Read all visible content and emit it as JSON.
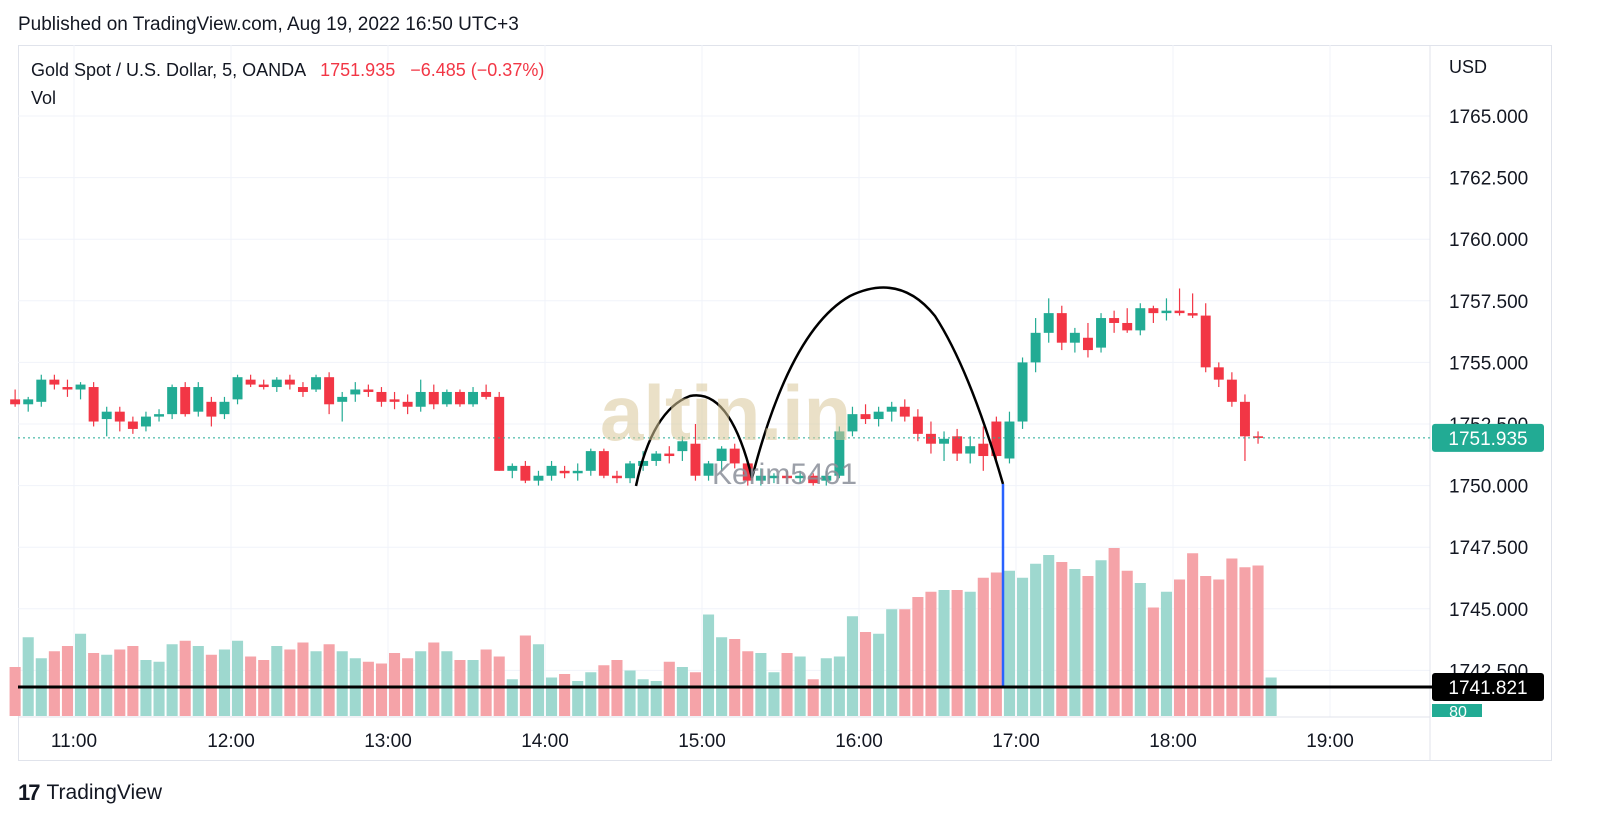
{
  "published": "Published on TradingView.com, Aug 19, 2022 16:50 UTC+3",
  "legend": {
    "symbol": "Gold Spot / U.S. Dollar, 5, OANDA",
    "price": "1751.935",
    "change": "−6.485 (−0.37%)",
    "vol_label": "Vol"
  },
  "currency": "USD",
  "watermark": {
    "brand": "altin.in",
    "user": "Kerim5461"
  },
  "footer": {
    "brand": "TradingView"
  },
  "colors": {
    "up": "#22ab94",
    "down": "#f23645",
    "vol_up": "#9ed8cf",
    "vol_down": "#f5a3a8",
    "annotation": "#000000",
    "blue_line": "#2962ff"
  },
  "chart_data": {
    "type": "candlestick",
    "symbol": "XAUUSD",
    "interval": "5",
    "x_tick_labels": [
      "11:00",
      "12:00",
      "13:00",
      "14:00",
      "15:00",
      "16:00",
      "17:00",
      "18:00",
      "19:00"
    ],
    "y_tick_labels": [
      "1765.000",
      "1762.500",
      "1760.000",
      "1757.500",
      "1755.000",
      "1752.500",
      "1750.000",
      "1747.500",
      "1745.000",
      "1742.500"
    ],
    "ylim": [
      1741.2,
      1766.0
    ],
    "last_price_label": "1751.935",
    "horizontal_line_label": "1741.821",
    "volume_label": "80",
    "start_time": "10:35",
    "candles": [
      {
        "o": 1753.5,
        "h": 1753.9,
        "l": 1753.2,
        "c": 1753.3
      },
      {
        "o": 1753.3,
        "h": 1753.6,
        "l": 1753.0,
        "c": 1753.5
      },
      {
        "o": 1753.4,
        "h": 1754.5,
        "l": 1753.2,
        "c": 1754.3
      },
      {
        "o": 1754.3,
        "h": 1754.5,
        "l": 1753.9,
        "c": 1754.1
      },
      {
        "o": 1754.0,
        "h": 1754.3,
        "l": 1753.6,
        "c": 1753.9
      },
      {
        "o": 1753.9,
        "h": 1754.2,
        "l": 1753.5,
        "c": 1754.1
      },
      {
        "o": 1754.0,
        "h": 1754.2,
        "l": 1752.4,
        "c": 1752.6
      },
      {
        "o": 1752.7,
        "h": 1753.2,
        "l": 1752.0,
        "c": 1753.0
      },
      {
        "o": 1753.0,
        "h": 1753.2,
        "l": 1752.2,
        "c": 1752.6
      },
      {
        "o": 1752.6,
        "h": 1752.8,
        "l": 1752.1,
        "c": 1752.3
      },
      {
        "o": 1752.4,
        "h": 1753.0,
        "l": 1752.2,
        "c": 1752.8
      },
      {
        "o": 1752.8,
        "h": 1753.1,
        "l": 1752.6,
        "c": 1752.9
      },
      {
        "o": 1752.9,
        "h": 1754.1,
        "l": 1752.7,
        "c": 1754.0
      },
      {
        "o": 1754.0,
        "h": 1754.2,
        "l": 1752.8,
        "c": 1752.9
      },
      {
        "o": 1753.0,
        "h": 1754.2,
        "l": 1752.8,
        "c": 1754.0
      },
      {
        "o": 1753.4,
        "h": 1753.6,
        "l": 1752.4,
        "c": 1752.8
      },
      {
        "o": 1752.9,
        "h": 1753.6,
        "l": 1752.7,
        "c": 1753.4
      },
      {
        "o": 1753.5,
        "h": 1754.5,
        "l": 1753.3,
        "c": 1754.4
      },
      {
        "o": 1754.3,
        "h": 1754.5,
        "l": 1754.0,
        "c": 1754.1
      },
      {
        "o": 1754.1,
        "h": 1754.3,
        "l": 1753.9,
        "c": 1754.0
      },
      {
        "o": 1754.0,
        "h": 1754.4,
        "l": 1753.8,
        "c": 1754.3
      },
      {
        "o": 1754.3,
        "h": 1754.5,
        "l": 1753.9,
        "c": 1754.1
      },
      {
        "o": 1754.0,
        "h": 1754.2,
        "l": 1753.6,
        "c": 1753.8
      },
      {
        "o": 1753.9,
        "h": 1754.5,
        "l": 1753.8,
        "c": 1754.4
      },
      {
        "o": 1754.4,
        "h": 1754.6,
        "l": 1752.9,
        "c": 1753.3
      },
      {
        "o": 1753.4,
        "h": 1753.8,
        "l": 1752.6,
        "c": 1753.6
      },
      {
        "o": 1753.7,
        "h": 1754.2,
        "l": 1753.4,
        "c": 1753.9
      },
      {
        "o": 1753.9,
        "h": 1754.1,
        "l": 1753.6,
        "c": 1753.8
      },
      {
        "o": 1753.8,
        "h": 1754.0,
        "l": 1753.2,
        "c": 1753.4
      },
      {
        "o": 1753.5,
        "h": 1753.8,
        "l": 1753.1,
        "c": 1753.4
      },
      {
        "o": 1753.4,
        "h": 1753.7,
        "l": 1752.9,
        "c": 1753.2
      },
      {
        "o": 1753.2,
        "h": 1754.3,
        "l": 1753.0,
        "c": 1753.8
      },
      {
        "o": 1753.8,
        "h": 1754.1,
        "l": 1753.1,
        "c": 1753.3
      },
      {
        "o": 1753.3,
        "h": 1753.9,
        "l": 1753.2,
        "c": 1753.8
      },
      {
        "o": 1753.8,
        "h": 1753.9,
        "l": 1753.2,
        "c": 1753.3
      },
      {
        "o": 1753.3,
        "h": 1754.0,
        "l": 1753.2,
        "c": 1753.8
      },
      {
        "o": 1753.8,
        "h": 1754.1,
        "l": 1753.5,
        "c": 1753.6
      },
      {
        "o": 1753.6,
        "h": 1753.8,
        "l": 1750.6,
        "c": 1750.6
      },
      {
        "o": 1750.6,
        "h": 1750.9,
        "l": 1750.3,
        "c": 1750.8
      },
      {
        "o": 1750.8,
        "h": 1751.0,
        "l": 1750.1,
        "c": 1750.2
      },
      {
        "o": 1750.2,
        "h": 1750.6,
        "l": 1750.0,
        "c": 1750.4
      },
      {
        "o": 1750.4,
        "h": 1751.0,
        "l": 1750.2,
        "c": 1750.8
      },
      {
        "o": 1750.6,
        "h": 1750.8,
        "l": 1750.3,
        "c": 1750.5
      },
      {
        "o": 1750.5,
        "h": 1750.9,
        "l": 1750.2,
        "c": 1750.6
      },
      {
        "o": 1750.6,
        "h": 1751.5,
        "l": 1750.4,
        "c": 1751.4
      },
      {
        "o": 1751.4,
        "h": 1751.5,
        "l": 1750.3,
        "c": 1750.4
      },
      {
        "o": 1750.4,
        "h": 1750.6,
        "l": 1750.1,
        "c": 1750.3
      },
      {
        "o": 1750.3,
        "h": 1751.0,
        "l": 1750.1,
        "c": 1750.9
      },
      {
        "o": 1750.8,
        "h": 1751.4,
        "l": 1750.6,
        "c": 1751.0
      },
      {
        "o": 1751.0,
        "h": 1751.4,
        "l": 1750.8,
        "c": 1751.3
      },
      {
        "o": 1751.3,
        "h": 1751.6,
        "l": 1750.9,
        "c": 1751.2
      },
      {
        "o": 1751.4,
        "h": 1752.0,
        "l": 1751.0,
        "c": 1751.8
      },
      {
        "o": 1751.7,
        "h": 1752.5,
        "l": 1750.2,
        "c": 1750.4
      },
      {
        "o": 1750.4,
        "h": 1751.0,
        "l": 1750.2,
        "c": 1750.9
      },
      {
        "o": 1751.0,
        "h": 1751.6,
        "l": 1750.6,
        "c": 1751.5
      },
      {
        "o": 1751.5,
        "h": 1751.7,
        "l": 1750.7,
        "c": 1750.9
      },
      {
        "o": 1750.9,
        "h": 1751.0,
        "l": 1750.0,
        "c": 1750.2
      },
      {
        "o": 1750.2,
        "h": 1750.7,
        "l": 1750.0,
        "c": 1750.4
      },
      {
        "o": 1750.3,
        "h": 1750.5,
        "l": 1750.1,
        "c": 1750.4
      },
      {
        "o": 1750.4,
        "h": 1750.6,
        "l": 1750.1,
        "c": 1750.3
      },
      {
        "o": 1750.3,
        "h": 1750.6,
        "l": 1750.1,
        "c": 1750.4
      },
      {
        "o": 1750.4,
        "h": 1750.5,
        "l": 1750.0,
        "c": 1750.1
      },
      {
        "o": 1750.2,
        "h": 1750.6,
        "l": 1750.0,
        "c": 1750.4
      },
      {
        "o": 1750.4,
        "h": 1752.4,
        "l": 1750.3,
        "c": 1752.2
      },
      {
        "o": 1752.2,
        "h": 1753.2,
        "l": 1752.0,
        "c": 1752.9
      },
      {
        "o": 1752.9,
        "h": 1753.3,
        "l": 1752.5,
        "c": 1752.7
      },
      {
        "o": 1752.7,
        "h": 1753.2,
        "l": 1752.4,
        "c": 1753.0
      },
      {
        "o": 1753.0,
        "h": 1753.4,
        "l": 1752.6,
        "c": 1753.2
      },
      {
        "o": 1753.2,
        "h": 1753.5,
        "l": 1752.6,
        "c": 1752.8
      },
      {
        "o": 1752.8,
        "h": 1753.1,
        "l": 1751.8,
        "c": 1752.1
      },
      {
        "o": 1752.1,
        "h": 1752.6,
        "l": 1751.3,
        "c": 1751.7
      },
      {
        "o": 1751.7,
        "h": 1752.2,
        "l": 1751.0,
        "c": 1751.9
      },
      {
        "o": 1752.0,
        "h": 1752.3,
        "l": 1751.0,
        "c": 1751.3
      },
      {
        "o": 1751.3,
        "h": 1752.0,
        "l": 1750.9,
        "c": 1751.6
      },
      {
        "o": 1751.7,
        "h": 1752.4,
        "l": 1750.6,
        "c": 1751.2
      },
      {
        "o": 1752.6,
        "h": 1752.8,
        "l": 1750.9,
        "c": 1751.2
      },
      {
        "o": 1751.1,
        "h": 1753.0,
        "l": 1750.9,
        "c": 1752.6
      },
      {
        "o": 1752.6,
        "h": 1755.2,
        "l": 1752.3,
        "c": 1755.0
      },
      {
        "o": 1755.0,
        "h": 1756.8,
        "l": 1754.6,
        "c": 1756.2
      },
      {
        "o": 1756.2,
        "h": 1757.6,
        "l": 1755.8,
        "c": 1757.0
      },
      {
        "o": 1757.0,
        "h": 1757.3,
        "l": 1755.5,
        "c": 1755.8
      },
      {
        "o": 1755.8,
        "h": 1756.4,
        "l": 1755.4,
        "c": 1756.2
      },
      {
        "o": 1756.0,
        "h": 1756.6,
        "l": 1755.2,
        "c": 1755.5
      },
      {
        "o": 1755.6,
        "h": 1757.0,
        "l": 1755.4,
        "c": 1756.8
      },
      {
        "o": 1756.8,
        "h": 1757.1,
        "l": 1756.2,
        "c": 1756.6
      },
      {
        "o": 1756.6,
        "h": 1757.2,
        "l": 1756.2,
        "c": 1756.3
      },
      {
        "o": 1756.3,
        "h": 1757.4,
        "l": 1756.1,
        "c": 1757.2
      },
      {
        "o": 1757.2,
        "h": 1757.3,
        "l": 1756.6,
        "c": 1757.0
      },
      {
        "o": 1757.0,
        "h": 1757.6,
        "l": 1756.7,
        "c": 1757.1
      },
      {
        "o": 1757.1,
        "h": 1758.0,
        "l": 1756.9,
        "c": 1757.0
      },
      {
        "o": 1757.0,
        "h": 1757.8,
        "l": 1756.8,
        "c": 1756.9
      },
      {
        "o": 1756.9,
        "h": 1757.4,
        "l": 1754.6,
        "c": 1754.8
      },
      {
        "o": 1754.8,
        "h": 1755.0,
        "l": 1754.0,
        "c": 1754.3
      },
      {
        "o": 1754.3,
        "h": 1754.6,
        "l": 1753.2,
        "c": 1753.4
      },
      {
        "o": 1753.4,
        "h": 1753.7,
        "l": 1751.0,
        "c": 1752.0
      },
      {
        "o": 1752.0,
        "h": 1752.2,
        "l": 1751.7,
        "c": 1751.935
      }
    ],
    "volumes": [
      28,
      45,
      33,
      37,
      40,
      47,
      36,
      35,
      38,
      40,
      32,
      31,
      41,
      43,
      40,
      35,
      38,
      43,
      34,
      32,
      40,
      38,
      42,
      37,
      41,
      37,
      33,
      31,
      30,
      36,
      33,
      37,
      42,
      37,
      32,
      32,
      38,
      34,
      21,
      46,
      41,
      22,
      24,
      20,
      25,
      29,
      32,
      26,
      21,
      20,
      31,
      28,
      25,
      58,
      45,
      44,
      37,
      36,
      25,
      36,
      34,
      21,
      33,
      34,
      57,
      48,
      47,
      61,
      61,
      68,
      71,
      72,
      72,
      71,
      79,
      82,
      83,
      79,
      87,
      92,
      88,
      84,
      80,
      89,
      96,
      83,
      76,
      62,
      71,
      78,
      93,
      80,
      78,
      90,
      85,
      86,
      22
    ]
  }
}
